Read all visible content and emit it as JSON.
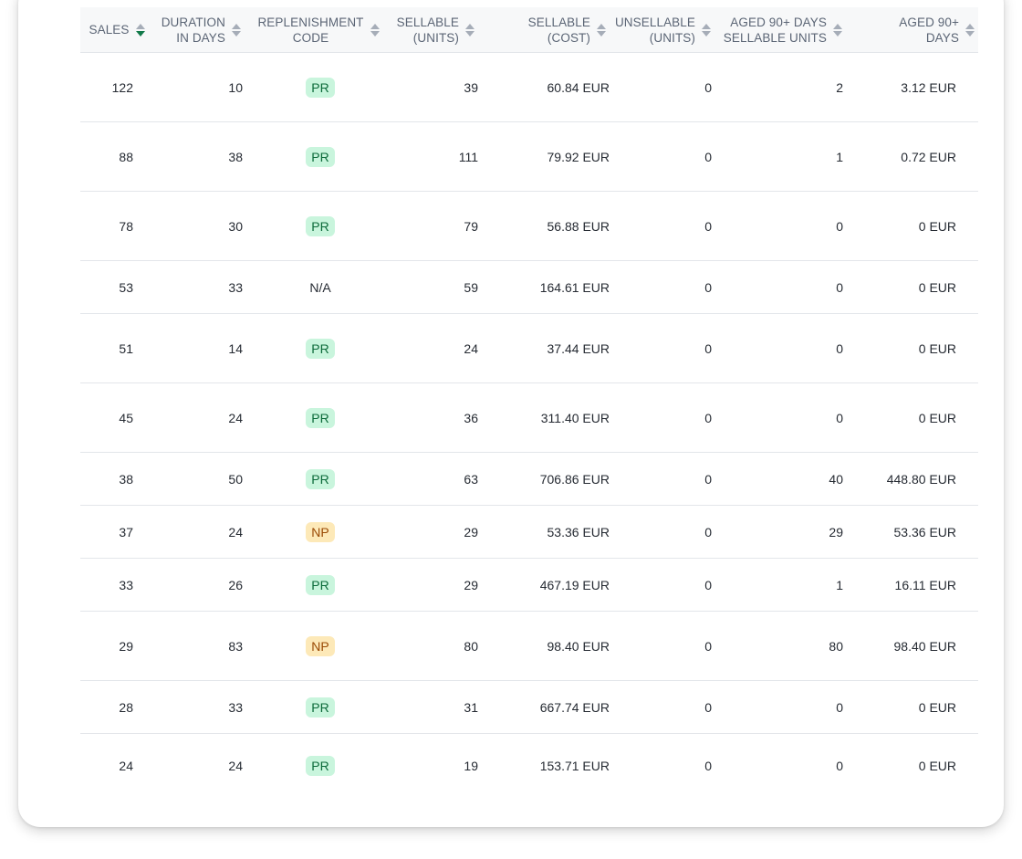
{
  "table": {
    "columns": [
      {
        "label": "SALES",
        "sorted": "desc"
      },
      {
        "label": "DURATION\nIN DAYS"
      },
      {
        "label": "REPLENISHMENT\nCODE"
      },
      {
        "label": "SELLABLE\n(UNITS)"
      },
      {
        "label": "SELLABLE\n(COST)"
      },
      {
        "label": "UNSELLABLE\n(UNITS)"
      },
      {
        "label": "AGED 90+ DAYS\nSELLABLE UNITS"
      },
      {
        "label": "AGED 90+\nDAYS"
      }
    ],
    "rows": [
      {
        "sales": "122",
        "duration": "10",
        "code": "PR",
        "sellable_units": "39",
        "sellable_cost": "60.84 EUR",
        "unsellable_units": "0",
        "aged_units": "2",
        "aged_value": "3.12 EUR"
      },
      {
        "sales": "88",
        "duration": "38",
        "code": "PR",
        "sellable_units": "111",
        "sellable_cost": "79.92 EUR",
        "unsellable_units": "0",
        "aged_units": "1",
        "aged_value": "0.72 EUR"
      },
      {
        "sales": "78",
        "duration": "30",
        "code": "PR",
        "sellable_units": "79",
        "sellable_cost": "56.88 EUR",
        "unsellable_units": "0",
        "aged_units": "0",
        "aged_value": "0 EUR"
      },
      {
        "sales": "53",
        "duration": "33",
        "code": "N/A",
        "sellable_units": "59",
        "sellable_cost": "164.61 EUR",
        "unsellable_units": "0",
        "aged_units": "0",
        "aged_value": "0 EUR"
      },
      {
        "sales": "51",
        "duration": "14",
        "code": "PR",
        "sellable_units": "24",
        "sellable_cost": "37.44 EUR",
        "unsellable_units": "0",
        "aged_units": "0",
        "aged_value": "0 EUR"
      },
      {
        "sales": "45",
        "duration": "24",
        "code": "PR",
        "sellable_units": "36",
        "sellable_cost": "311.40 EUR",
        "unsellable_units": "0",
        "aged_units": "0",
        "aged_value": "0 EUR"
      },
      {
        "sales": "38",
        "duration": "50",
        "code": "PR",
        "sellable_units": "63",
        "sellable_cost": "706.86 EUR",
        "unsellable_units": "0",
        "aged_units": "40",
        "aged_value": "448.80 EUR"
      },
      {
        "sales": "37",
        "duration": "24",
        "code": "NP",
        "sellable_units": "29",
        "sellable_cost": "53.36 EUR",
        "unsellable_units": "0",
        "aged_units": "29",
        "aged_value": "53.36 EUR"
      },
      {
        "sales": "33",
        "duration": "26",
        "code": "PR",
        "sellable_units": "29",
        "sellable_cost": "467.19 EUR",
        "unsellable_units": "0",
        "aged_units": "1",
        "aged_value": "16.11 EUR"
      },
      {
        "sales": "29",
        "duration": "83",
        "code": "NP",
        "sellable_units": "80",
        "sellable_cost": "98.40 EUR",
        "unsellable_units": "0",
        "aged_units": "80",
        "aged_value": "98.40 EUR"
      },
      {
        "sales": "28",
        "duration": "33",
        "code": "PR",
        "sellable_units": "31",
        "sellable_cost": "667.74 EUR",
        "unsellable_units": "0",
        "aged_units": "0",
        "aged_value": "0 EUR"
      },
      {
        "sales": "24",
        "duration": "24",
        "code": "PR",
        "sellable_units": "19",
        "sellable_cost": "153.71 EUR",
        "unsellable_units": "0",
        "aged_units": "0",
        "aged_value": "0 EUR"
      }
    ]
  },
  "colors": {
    "pr_badge_bg": "#c9f5dd",
    "pr_badge_text": "#0d6b3b",
    "np_badge_bg": "#fde9b8",
    "np_badge_text": "#9a4a05",
    "sort_active": "#127a4a"
  }
}
